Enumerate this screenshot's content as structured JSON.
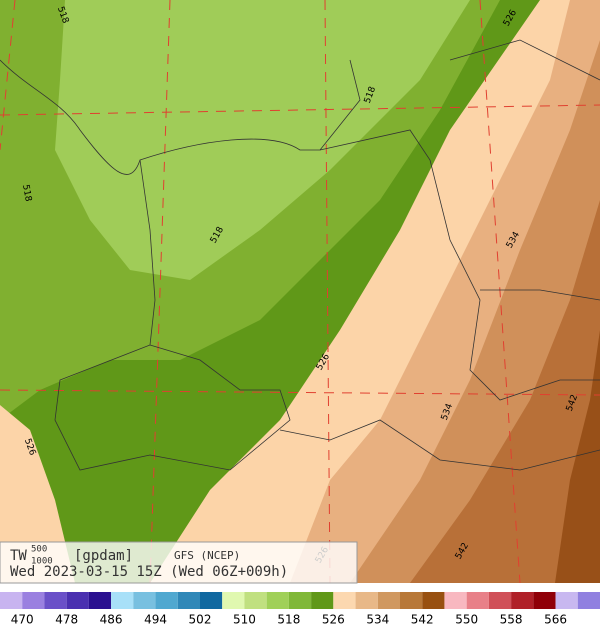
{
  "map": {
    "contour_labels": [
      "518",
      "518",
      "518",
      "518",
      "526",
      "526",
      "526",
      "526",
      "534",
      "534",
      "542",
      "542"
    ],
    "title": {
      "variable": "TW",
      "superscript": "500",
      "subscript": "1000",
      "units": "[gpdam]",
      "model": "GFS (NCEP)",
      "valid_time": "Wed 2023-03-15 15Z (Wed 06Z+009h)"
    }
  },
  "colorbar": {
    "labels": [
      "470",
      "478",
      "486",
      "494",
      "502",
      "510",
      "518",
      "526",
      "534",
      "542",
      "550",
      "558",
      "566"
    ]
  }
}
